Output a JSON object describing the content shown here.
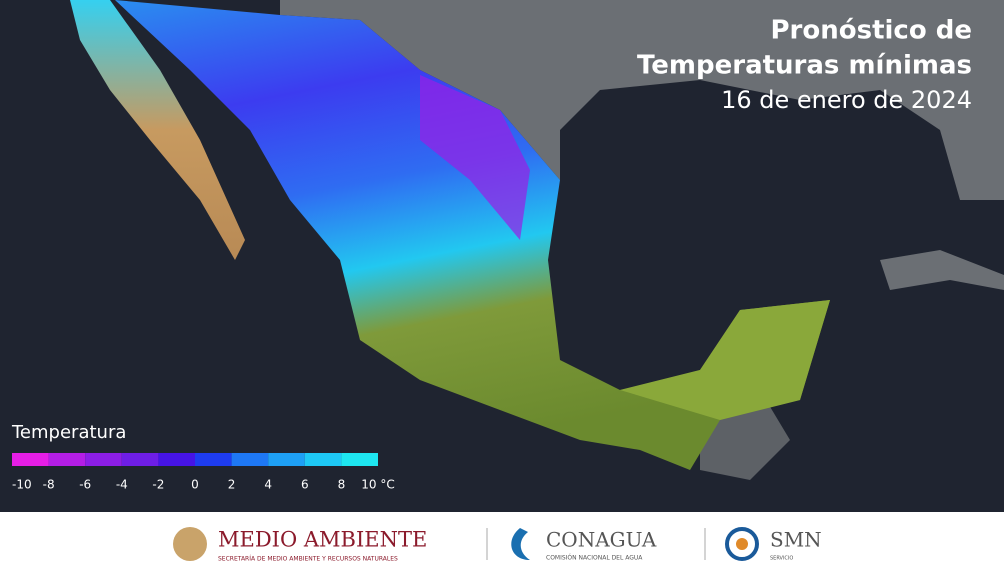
{
  "header": {
    "title_line1": "Pronóstico de",
    "title_line2": "Temperaturas mínimas",
    "date": "16 de enero de 2024"
  },
  "legend": {
    "title": "Temperatura",
    "colors": [
      "#e61ee6",
      "#b41ee6",
      "#8c1ee6",
      "#6e1ee6",
      "#4614e6",
      "#1e3cf0",
      "#1e78f5",
      "#1ea0f5",
      "#1ec8f5",
      "#1ee6f0"
    ],
    "ticks": [
      -10,
      -8,
      -6,
      -4,
      -2,
      0,
      2,
      4,
      6,
      8,
      {
        "value": 10,
        "label": "10 °C"
      }
    ]
  },
  "footer": {
    "semarnat": "MEDIO AMBIENTE",
    "semarnat_sub": "SECRETARÍA DE MEDIO AMBIENTE Y RECURSOS NATURALES",
    "conagua": "CONAGUA",
    "conagua_sub": "COMISIÓN NACIONAL DEL AGUA",
    "smn": "SMN",
    "smn_sub": "SERVICIO"
  }
}
